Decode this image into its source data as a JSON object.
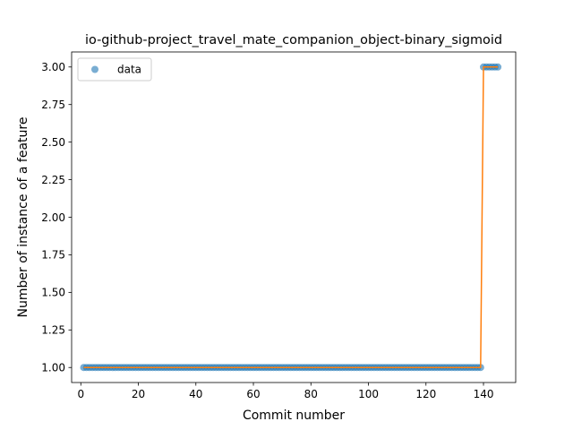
{
  "chart_data": {
    "type": "scatter",
    "title": "io-github-project_travel_mate_companion_object-binary_sigmoid",
    "xlabel": "Commit number",
    "ylabel": "Number of instance of a feature",
    "xlim": [
      -3.2,
      151.2
    ],
    "ylim": [
      0.9,
      3.1
    ],
    "xticks": [
      0,
      20,
      40,
      60,
      80,
      100,
      120,
      140
    ],
    "yticks": [
      1.0,
      1.25,
      1.5,
      1.75,
      2.0,
      2.25,
      2.5,
      2.75,
      3.0
    ],
    "ytick_labels": [
      "1.00",
      "1.25",
      "1.50",
      "1.75",
      "2.00",
      "2.25",
      "2.50",
      "2.75",
      "3.00"
    ],
    "grid": false,
    "legend": {
      "placement": "top-left",
      "entries": [
        "data"
      ]
    },
    "series": [
      {
        "name": "data",
        "style": "markers",
        "color": "#1f77b4",
        "segments": [
          {
            "x_start": 1,
            "x_end": 139,
            "y": 1
          },
          {
            "x_start": 140,
            "x_end": 145,
            "y": 3
          }
        ]
      },
      {
        "style": "line",
        "color": "#ff7f0e",
        "points": [
          [
            1,
            1
          ],
          [
            139,
            1
          ],
          [
            140,
            3
          ],
          [
            145,
            3
          ]
        ]
      }
    ]
  }
}
